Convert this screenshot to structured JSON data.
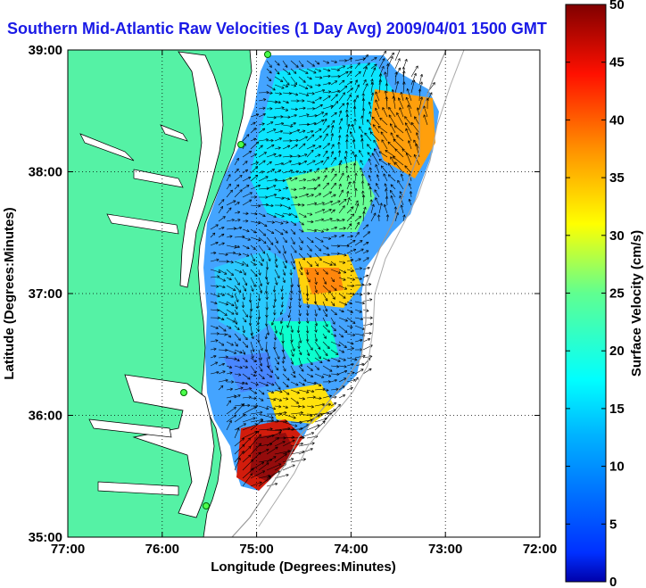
{
  "title": "Southern Mid-Atlantic Raw Velocities (1 Day Avg) 2009/04/01 1500 GMT",
  "xlabel": "Longitude (Degrees:Minutes)",
  "ylabel": "Latitude (Degrees:Minutes)",
  "colorbar_label": "Surface Velocity (cm/s)",
  "x_ticks": [
    "77:00",
    "76:00",
    "75:00",
    "74:00",
    "73:00",
    "72:00"
  ],
  "y_ticks": [
    "39:00",
    "38:00",
    "37:00",
    "36:00",
    "35:00"
  ],
  "colorbar_ticks": [
    "0",
    "5",
    "10",
    "15",
    "20",
    "25",
    "30",
    "35",
    "40",
    "45",
    "50"
  ],
  "colors": {
    "land": "#55f2a5",
    "coast": "#000000",
    "title": "#1a1ae6"
  }
}
